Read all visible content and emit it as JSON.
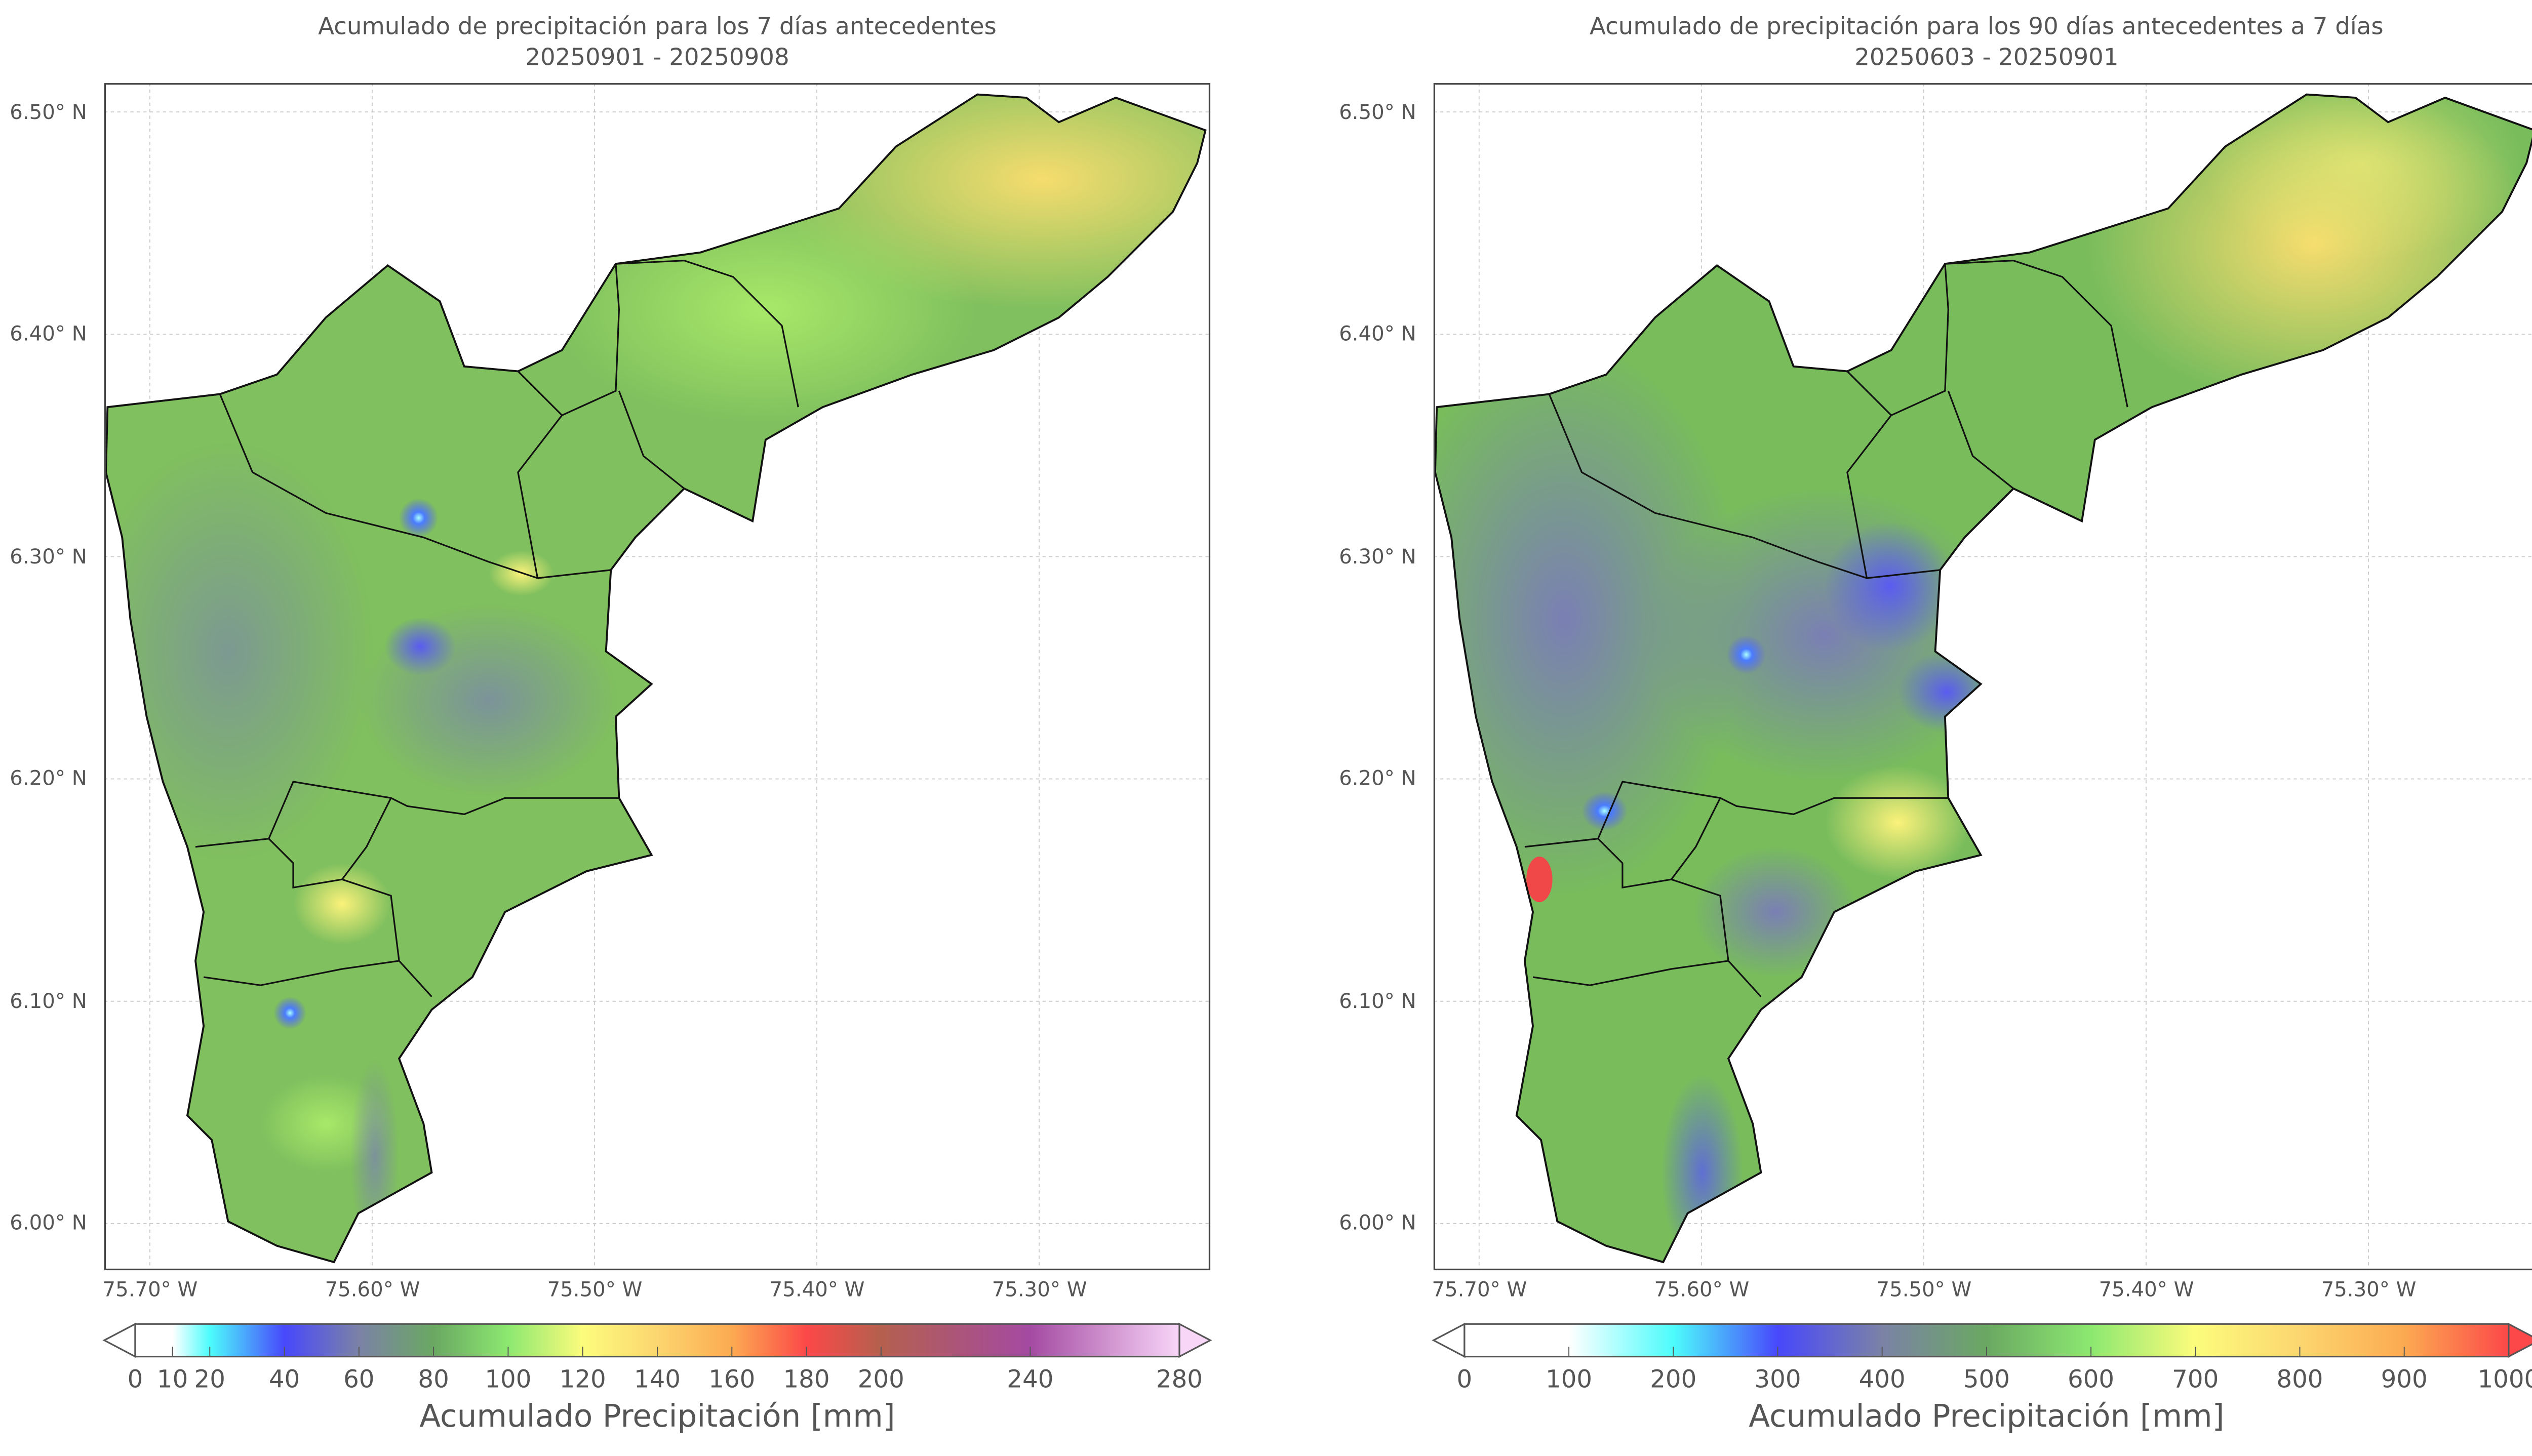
{
  "chart_data": [
    {
      "type": "heatmap",
      "title_line1": "Acumulado de precipitación para los 7 días antecedentes",
      "title_line2": "20250901 - 20250908",
      "yticks": [
        {
          "value": 6.5,
          "label": "6.50° N"
        },
        {
          "value": 6.4,
          "label": "6.40° N"
        },
        {
          "value": 6.3,
          "label": "6.30° N"
        },
        {
          "value": 6.2,
          "label": "6.20° N"
        },
        {
          "value": 6.1,
          "label": "6.10° N"
        },
        {
          "value": 6.0,
          "label": "6.00° N"
        }
      ],
      "xticks": [
        {
          "value": -75.7,
          "label": "75.70° W"
        },
        {
          "value": -75.6,
          "label": "75.60° W"
        },
        {
          "value": -75.5,
          "label": "75.50° W"
        },
        {
          "value": -75.4,
          "label": "75.40° W"
        },
        {
          "value": -75.3,
          "label": "75.30° W"
        }
      ],
      "xlim": [
        -75.7205,
        -75.223
      ],
      "ylim": [
        5.979,
        6.513
      ],
      "grid": true,
      "colorbar": {
        "label": "Acumulado Precipitación [mm]",
        "range": [
          0,
          280
        ],
        "extend": "both",
        "ticks": [
          0,
          10,
          20,
          40,
          60,
          80,
          100,
          120,
          140,
          160,
          180,
          200,
          240,
          280
        ],
        "stops": [
          [
            0,
            "#ffffff"
          ],
          [
            10,
            "#ffffff"
          ],
          [
            20,
            "#4dfcfc"
          ],
          [
            40,
            "#4848fc"
          ],
          [
            60,
            "#7b82a6"
          ],
          [
            80,
            "#6aa862"
          ],
          [
            100,
            "#8ce870"
          ],
          [
            120,
            "#fcfc7c"
          ],
          [
            140,
            "#fcd670"
          ],
          [
            160,
            "#fcaa52"
          ],
          [
            180,
            "#fc4848"
          ],
          [
            200,
            "#b4604e"
          ],
          [
            240,
            "#a44aa2"
          ],
          [
            280,
            "#f8d6f8"
          ]
        ]
      },
      "features": {
        "dominant": "green 80-110 mm",
        "northeast": "yellow 110-130 mm",
        "local_minima": "blue spots ~40 mm"
      }
    },
    {
      "type": "heatmap",
      "title_line1": "Acumulado de precipitación para los 90 días antecedentes a 7 días",
      "title_line2": "20250603 - 20250901",
      "yticks": [
        {
          "value": 6.5,
          "label": "6.50° N"
        },
        {
          "value": 6.4,
          "label": "6.40° N"
        },
        {
          "value": 6.3,
          "label": "6.30° N"
        },
        {
          "value": 6.2,
          "label": "6.20° N"
        },
        {
          "value": 6.1,
          "label": "6.10° N"
        },
        {
          "value": 6.0,
          "label": "6.00° N"
        }
      ],
      "xticks": [
        {
          "value": -75.7,
          "label": "75.70° W"
        },
        {
          "value": -75.6,
          "label": "75.60° W"
        },
        {
          "value": -75.5,
          "label": "75.50° W"
        },
        {
          "value": -75.4,
          "label": "75.40° W"
        },
        {
          "value": -75.3,
          "label": "75.30° W"
        }
      ],
      "xlim": [
        -75.7205,
        -75.223
      ],
      "ylim": [
        5.979,
        6.513
      ],
      "grid": true,
      "colorbar": {
        "label": "Acumulado Precipitación [mm]",
        "range": [
          0,
          1000
        ],
        "extend": "both",
        "ticks": [
          0,
          100,
          200,
          300,
          400,
          500,
          600,
          700,
          800,
          900,
          1000
        ],
        "stops": [
          [
            0,
            "#ffffff"
          ],
          [
            100,
            "#ffffff"
          ],
          [
            200,
            "#4dfcfc"
          ],
          [
            300,
            "#4848fc"
          ],
          [
            400,
            "#7b82a6"
          ],
          [
            500,
            "#6aa862"
          ],
          [
            600,
            "#8ce870"
          ],
          [
            700,
            "#fcfc7c"
          ],
          [
            800,
            "#fcd670"
          ],
          [
            900,
            "#fcaa52"
          ],
          [
            1000,
            "#fc4848"
          ]
        ]
      },
      "features": {
        "dominant": "green/slate 450-650 mm",
        "northeast": "yellow 700-800 mm",
        "local_minima": "blue 300-350 mm"
      }
    }
  ]
}
